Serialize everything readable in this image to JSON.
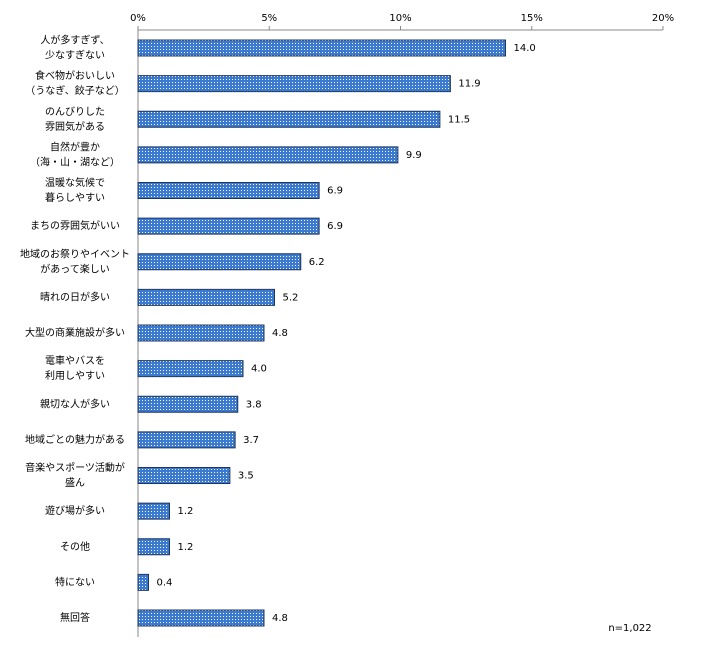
{
  "chart_data": {
    "type": "bar",
    "orientation": "horizontal",
    "categories": [
      [
        "人が多すぎず、",
        "少なすぎない"
      ],
      [
        "食べ物がおいしい",
        "（うなぎ、餃子など）"
      ],
      [
        "のんびりした",
        "雰囲気がある"
      ],
      [
        "自然が豊か",
        "（海・山・湖など）"
      ],
      [
        "温暖な気候で",
        "暮らしやすい"
      ],
      [
        "まちの雰囲気がいい"
      ],
      [
        "地域のお祭りやイベント",
        "があって楽しい"
      ],
      [
        "晴れの日が多い"
      ],
      [
        "大型の商業施設が多い"
      ],
      [
        "電車やバスを",
        "利用しやすい"
      ],
      [
        "親切な人が多い"
      ],
      [
        "地域ごとの魅力がある"
      ],
      [
        "音楽やスポーツ活動が",
        "盛ん"
      ],
      [
        "遊び場が多い"
      ],
      [
        "その他"
      ],
      [
        "特にない"
      ],
      [
        "無回答"
      ]
    ],
    "values": [
      14.0,
      11.9,
      11.5,
      9.9,
      6.9,
      6.9,
      6.2,
      5.2,
      4.8,
      4.0,
      3.8,
      3.7,
      3.5,
      1.2,
      1.2,
      0.4,
      4.8
    ],
    "value_labels": [
      "14.0",
      "11.9",
      "11.5",
      "9.9",
      "6.9",
      "6.9",
      "6.2",
      "5.2",
      "4.8",
      "4.0",
      "3.8",
      "3.7",
      "3.5",
      "1.2",
      "1.2",
      "0.4",
      "4.8"
    ],
    "color": "#3a7bd0",
    "xlim": [
      0,
      20
    ],
    "xticks": [
      {
        "value": 0,
        "label": "0%"
      },
      {
        "value": 5,
        "label": "5%"
      },
      {
        "value": 10,
        "label": "10%"
      },
      {
        "value": 15,
        "label": "15%"
      },
      {
        "value": 20,
        "label": "20%"
      }
    ],
    "annotation": "n=1,022"
  }
}
